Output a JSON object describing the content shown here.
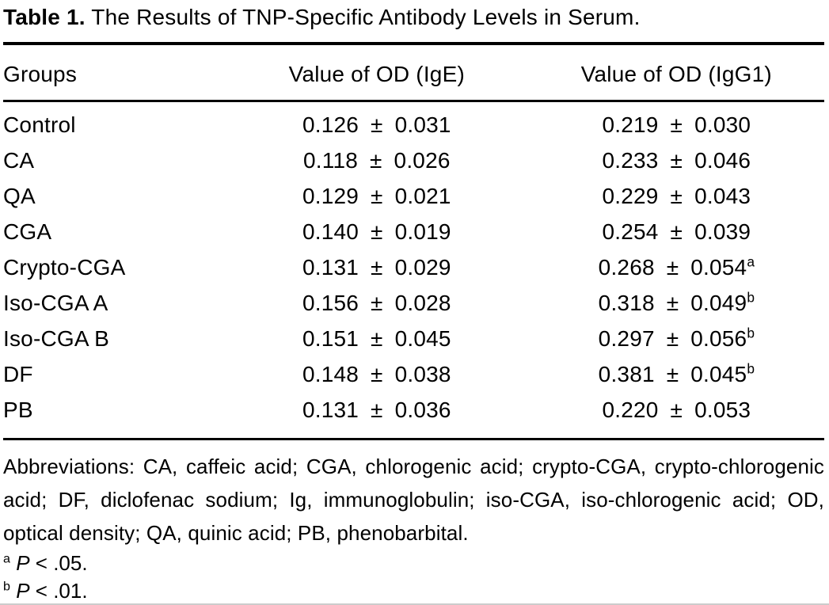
{
  "title": {
    "label": "Table 1.",
    "text": "The Results of TNP-Specific Antibody Levels in Serum."
  },
  "chart_data": {
    "type": "table",
    "columns": [
      "Groups",
      "Value of OD (IgE)",
      "Value of OD (IgG1)"
    ],
    "rows": [
      {
        "group": "Control",
        "ige": "0.126 ± 0.031",
        "igg1": "0.219 ± 0.030",
        "sig": ""
      },
      {
        "group": "CA",
        "ige": "0.118 ± 0.026",
        "igg1": "0.233 ± 0.046",
        "sig": ""
      },
      {
        "group": "QA",
        "ige": "0.129 ± 0.021",
        "igg1": "0.229 ± 0.043",
        "sig": ""
      },
      {
        "group": "CGA",
        "ige": "0.140 ± 0.019",
        "igg1": "0.254 ± 0.039",
        "sig": ""
      },
      {
        "group": "Crypto-CGA",
        "ige": "0.131 ± 0.029",
        "igg1": "0.268 ± 0.054",
        "sig": "a"
      },
      {
        "group": "Iso-CGA A",
        "ige": "0.156 ± 0.028",
        "igg1": "0.318 ± 0.049",
        "sig": "b"
      },
      {
        "group": "Iso-CGA B",
        "ige": "0.151 ± 0.045",
        "igg1": "0.297 ± 0.056",
        "sig": "b"
      },
      {
        "group": "DF",
        "ige": "0.148 ± 0.038",
        "igg1": "0.381 ± 0.045",
        "sig": "b"
      },
      {
        "group": "PB",
        "ige": "0.131 ± 0.036",
        "igg1": "0.220 ± 0.053",
        "sig": ""
      }
    ]
  },
  "footnotes": {
    "abbreviations": "Abbreviations: CA, caffeic acid; CGA, chlorogenic acid; crypto-CGA, crypto-chlorogenic acid; DF, diclofenac sodium; Ig, immunoglobulin; iso-CGA, iso-chlorogenic acid; OD, optical density; QA, quinic acid; PB, phenobarbital.",
    "notes": [
      {
        "marker": "a",
        "p": "P",
        "comparison": "< .05."
      },
      {
        "marker": "b",
        "p": "P",
        "comparison": "< .01."
      }
    ]
  },
  "colors": {
    "text": "#000000",
    "rules": "#000000",
    "bottom_edge": "#cccccc"
  }
}
